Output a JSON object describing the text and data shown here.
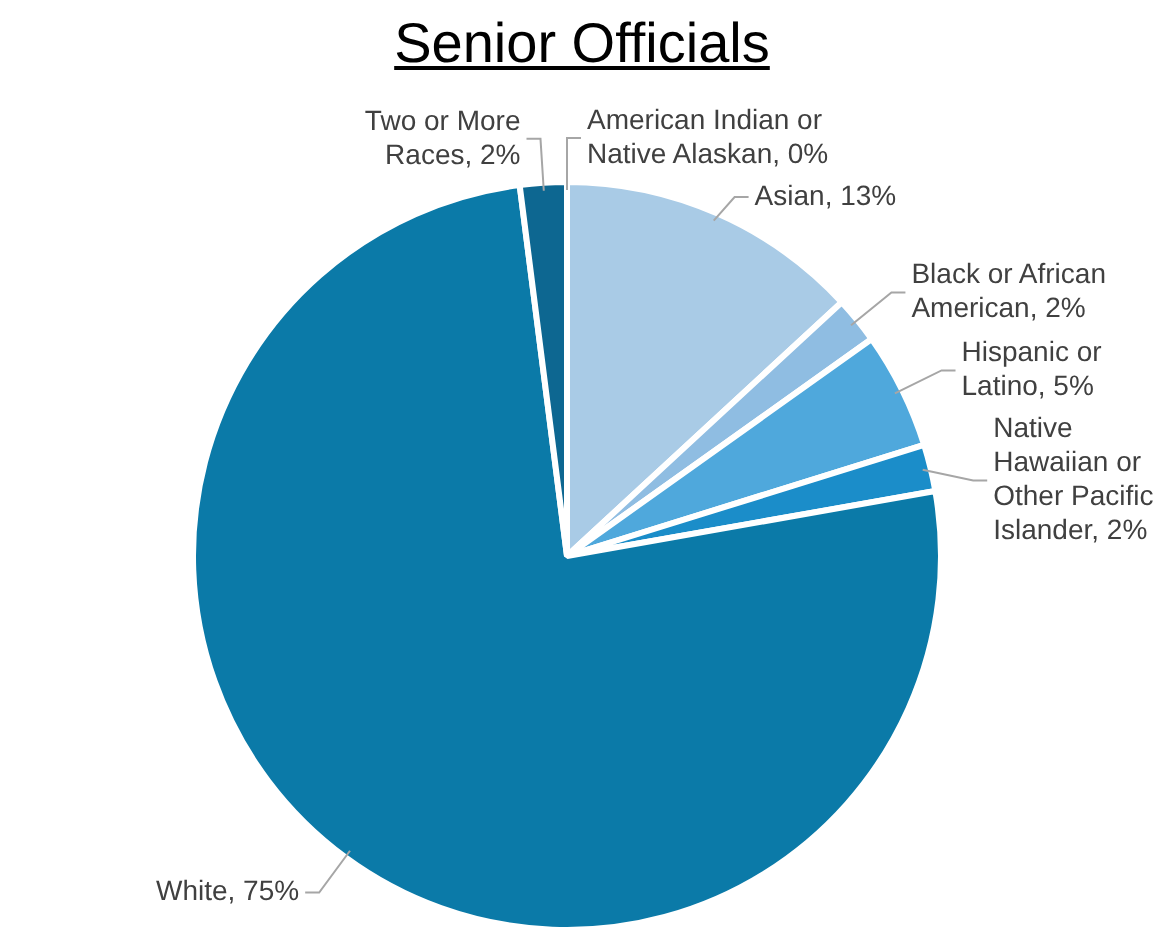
{
  "chart_data": {
    "type": "pie",
    "title": "Senior Officials",
    "categories": [
      "American Indian or Native Alaskan",
      "Asian",
      "Black or African American",
      "Hispanic or Latino",
      "Native Hawaiian or Other Pacific Islander",
      "White",
      "Two or More Races"
    ],
    "values": [
      0,
      13,
      2,
      5,
      2,
      75,
      2
    ],
    "value_labels": [
      ", 0%",
      ", 13%",
      ", 2%",
      ", 5%",
      ", 2%",
      ", 75%",
      ", 2%"
    ],
    "colors": [
      "#cfe2f3",
      "#a9cbe6",
      "#8fbde2",
      "#4fa8dc",
      "#1b8dc9",
      "#0b7aa8",
      "#0d6791"
    ],
    "legend": false
  }
}
